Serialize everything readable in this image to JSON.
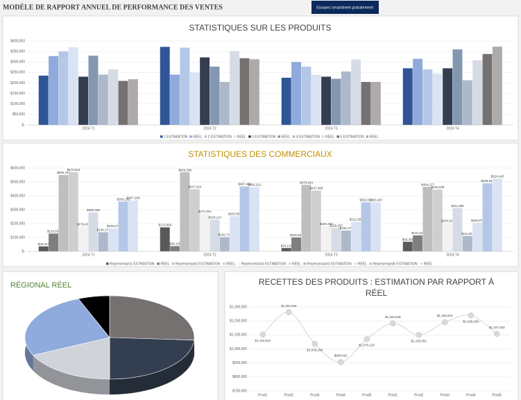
{
  "header": {
    "title": "MODÈLE DE RAPPORT ANNUEL DE PERFORMANCE DES VENTES",
    "button": "Essayez smartsheet gratuitement"
  },
  "chart_data": [
    {
      "type": "bar",
      "title": "STATISTIQUES SUR LES PRODUITS",
      "title_color": "#404040",
      "categories": [
        "2024 T1",
        "2024 T2",
        "2024 T3",
        "2024 T4"
      ],
      "series": [
        {
          "name": "1 ESTIMATION",
          "color": "#2f5597",
          "values": [
            235000,
            372000,
            225000,
            270000
          ]
        },
        {
          "name": "RÉEL",
          "color": "#8faadc",
          "values": [
            328000,
            240000,
            300000,
            315000
          ]
        },
        {
          "name": "2 ESTIMATION",
          "color": "#b4c7e7",
          "values": [
            350000,
            368000,
            278000,
            265000
          ]
        },
        {
          "name": "RÉEL",
          "color": "#dae3f3",
          "values": [
            370000,
            250000,
            240000,
            245000
          ]
        },
        {
          "name": "3 ESTIMATION",
          "color": "#333f50",
          "values": [
            230000,
            322000,
            230000,
            270000
          ]
        },
        {
          "name": "RÉEL",
          "color": "#8497b0",
          "values": [
            330000,
            278000,
            220000,
            360000
          ]
        },
        {
          "name": "4 ESTIMATION",
          "color": "#adb9ca",
          "values": [
            240000,
            205000,
            255000,
            213000
          ]
        },
        {
          "name": "RÉEL",
          "color": "#d6dce5",
          "values": [
            265000,
            352000,
            312000,
            308000
          ]
        },
        {
          "name": "5 ESTIMATION",
          "color": "#767171",
          "values": [
            210000,
            318000,
            205000,
            338000
          ]
        },
        {
          "name": "RÉEL",
          "color": "#aeaaaa",
          "values": [
            218000,
            313000,
            205000,
            373000
          ]
        }
      ],
      "ylim": [
        0,
        400000
      ],
      "yticks": [
        {
          "value": 0,
          "label": "$-"
        },
        {
          "value": 50000,
          "label": "$50,000"
        },
        {
          "value": 100000,
          "label": "$100,000"
        },
        {
          "value": 150000,
          "label": "$150,000"
        },
        {
          "value": 200000,
          "label": "$200,000"
        },
        {
          "value": 250000,
          "label": "$250,000"
        },
        {
          "value": 300000,
          "label": "$300,000"
        },
        {
          "value": 350000,
          "label": "$350,000"
        },
        {
          "value": 400000,
          "label": "$400,000"
        }
      ],
      "grid": true,
      "legend": "bottom"
    },
    {
      "type": "bar",
      "title": "STATISTIQUES DES COMMERCIAUX",
      "title_color": "#bf9000",
      "categories": [
        "2024 T1",
        "2024 T2",
        "2024 T3",
        "2024 T4"
      ],
      "series": [
        {
          "name": "Représentant1 ESTIMATION",
          "color": "#595959",
          "values": [
            36047,
            173060,
            24132,
            69309
          ],
          "value_labels": [
            "$36,047",
            "$173,060",
            "$24,132",
            "$69,309"
          ]
        },
        {
          "name": "RÉEL",
          "color": "#7f7f7f",
          "values": [
            128558,
            38136,
            100822,
            115337
          ],
          "value_labels": [
            "$128,558",
            "$38,136",
            "$100,822",
            "$115,337"
          ]
        },
        {
          "name": "Représentant2 ESTIMATION",
          "color": "#bfbfbf",
          "values": [
            550154,
            569399,
            478934,
            464277
          ],
          "value_labels": [
            "$550,154",
            "$569,399",
            "$478,934",
            "$464,277"
          ]
        },
        {
          "name": "RÉEL",
          "color": "#d0cece",
          "values": [
            570834,
            447324,
            437385,
            445048
          ],
          "value_labels": [
            "$570,834",
            "$447,324",
            "$437,385",
            "$445,048"
          ]
        },
        {
          "name": "Représentant3 ESTIMATION",
          "color": "#f2f2f2",
          "values": [
            179432,
            271904,
            180496,
            204328
          ],
          "value_labels": [
            "$179,432",
            "$271,904",
            "$180,496",
            "$204,328"
          ]
        },
        {
          "name": "RÉEL",
          "color": "#d6dce5",
          "values": [
            280368,
            229114,
            169257,
            311880
          ],
          "value_labels": [
            "$280,368",
            "$229,114",
            "$169,257",
            "$311,880"
          ]
        },
        {
          "name": "Représentant4 ESTIMATION",
          "color": "#adb9ca",
          "values": [
            138175,
            102721,
            150178,
            111847
          ],
          "value_labels": [
            "$138,175",
            "$102,721",
            "$150,178",
            "$111,847"
          ]
        },
        {
          "name": "RÉEL",
          "color": "#dae3f3",
          "values": [
            166076,
            253563,
            212586,
            206976
          ],
          "value_labels": [
            "$166,076",
            "$253,563",
            "$212,586",
            "$206,976"
          ]
        },
        {
          "name": "Représentant5 ESTIMATION",
          "color": "#b4c7e7",
          "values": [
            359115,
            467469,
            353571,
            489945
          ],
          "value_labels": [
            "$359,115",
            "$467,469",
            "$353,571",
            "$489,945"
          ]
        },
        {
          "name": "RÉEL",
          "color": "#dae3f3",
          "values": [
            367289,
            462312,
            353487,
            524445
          ],
          "value_labels": [
            "$367,289",
            "$462,312",
            "$353,487",
            "$524,445"
          ]
        }
      ],
      "ylim": [
        0,
        600000
      ],
      "yticks": [
        {
          "value": 0,
          "label": "$-"
        },
        {
          "value": 100000,
          "label": "$100,000"
        },
        {
          "value": 200000,
          "label": "$200,000"
        },
        {
          "value": 300000,
          "label": "$300,000"
        },
        {
          "value": 400000,
          "label": "$400,000"
        },
        {
          "value": 500000,
          "label": "$500,000"
        },
        {
          "value": 600000,
          "label": "$600,000"
        }
      ],
      "grid": true,
      "legend": "bottom"
    },
    {
      "type": "pie",
      "title": "RÉGIONAL RÉEL",
      "title_color": "#548235",
      "values": [
        26,
        24,
        18,
        26,
        6
      ],
      "colors": [
        "#767171",
        "#333f50",
        "#d0d3da",
        "#8faadc",
        "#000000"
      ]
    },
    {
      "type": "line",
      "title": "RECETTES DES PRODUITS : ESTIMATION PAR RAPPORT À RÉEL",
      "title_color": "#404040",
      "categories": [
        "Prod1",
        "Prod2",
        "Prod3",
        "Prod4",
        "Prod5",
        "Prod1",
        "Prod2",
        "Prod3",
        "Prod4",
        "Prod5"
      ],
      "values": [
        1102544,
        1262466,
        1036160,
        906022,
        1070120,
        1182849,
        1100591,
        1190619,
        1239189,
        1107533
      ],
      "value_labels": [
        "$1,102,544",
        "$1,262,466",
        "$1,036,160",
        "$906,022",
        "$1,070,120",
        "$1,182,849",
        "$1,100,591",
        "$1,190,619",
        "$1,239,189",
        "$1,107,533"
      ],
      "color": "#bfbfbf",
      "ylim": [
        700000,
        1300000
      ],
      "yticks": [
        {
          "value": 700000,
          "label": "$700,000"
        },
        {
          "value": 800000,
          "label": "$800,000"
        },
        {
          "value": 900000,
          "label": "$900,000"
        },
        {
          "value": 1000000,
          "label": "$1,000,000"
        },
        {
          "value": 1100000,
          "label": "$1,100,000"
        },
        {
          "value": 1200000,
          "label": "$1,200,000"
        },
        {
          "value": 1300000,
          "label": "$1,300,000"
        }
      ],
      "grid": true
    }
  ]
}
